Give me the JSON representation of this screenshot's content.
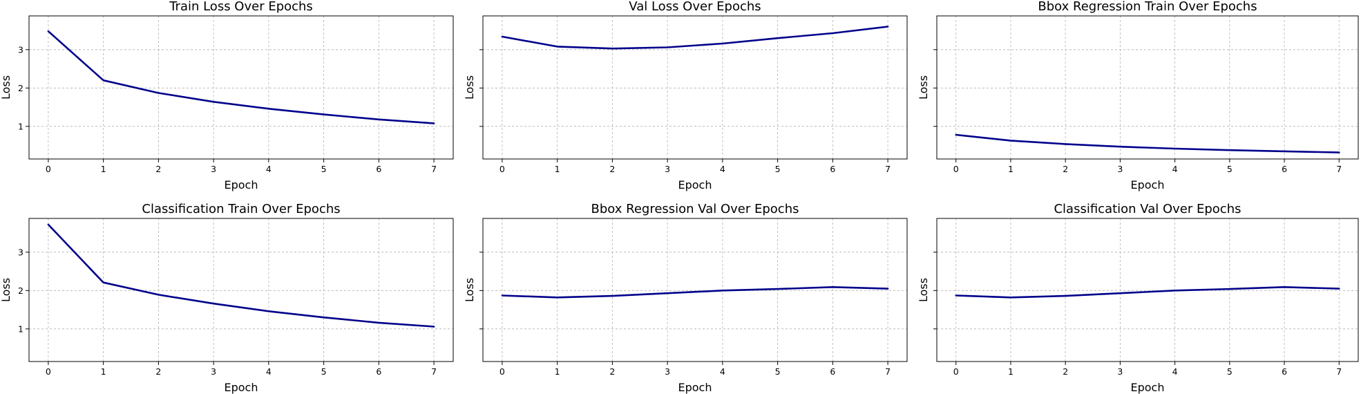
{
  "colors": {
    "line": "#00008b",
    "grid": "#b0b0b0"
  },
  "shared_y": {
    "ylim": [
      0.15,
      3.88
    ],
    "yticks": [
      1,
      2,
      3
    ]
  },
  "chart_data": [
    {
      "type": "line",
      "title": "Train Loss Over Epochs",
      "xlabel": "Epoch",
      "ylabel": "Loss",
      "x": [
        0,
        1,
        2,
        3,
        4,
        5,
        6,
        7
      ],
      "series": [
        {
          "values": [
            3.48,
            2.2,
            1.87,
            1.64,
            1.46,
            1.31,
            1.18,
            1.08
          ]
        }
      ],
      "xlim": [
        -0.35,
        7.35
      ],
      "ylim": [
        0.15,
        3.88
      ],
      "xticks": [
        0,
        1,
        2,
        3,
        4,
        5,
        6,
        7
      ],
      "yticks": [
        1,
        2,
        3
      ],
      "show_ytick_labels": true,
      "grid": true
    },
    {
      "type": "line",
      "title": "Val Loss Over Epochs",
      "xlabel": "Epoch",
      "ylabel": "Loss",
      "x": [
        0,
        1,
        2,
        3,
        4,
        5,
        6,
        7
      ],
      "series": [
        {
          "values": [
            3.34,
            3.08,
            3.03,
            3.06,
            3.16,
            3.3,
            3.43,
            3.6
          ]
        }
      ],
      "xlim": [
        -0.35,
        7.35
      ],
      "ylim": [
        0.15,
        3.88
      ],
      "xticks": [
        0,
        1,
        2,
        3,
        4,
        5,
        6,
        7
      ],
      "yticks": [
        1,
        2,
        3
      ],
      "show_ytick_labels": false,
      "grid": true
    },
    {
      "type": "line",
      "title": "Bbox Regression Train Over Epochs",
      "xlabel": "Epoch",
      "ylabel": "Loss",
      "x": [
        0,
        1,
        2,
        3,
        4,
        5,
        6,
        7
      ],
      "series": [
        {
          "values": [
            0.78,
            0.63,
            0.54,
            0.47,
            0.42,
            0.38,
            0.35,
            0.32
          ]
        }
      ],
      "xlim": [
        -0.35,
        7.35
      ],
      "ylim": [
        0.15,
        3.88
      ],
      "xticks": [
        0,
        1,
        2,
        3,
        4,
        5,
        6,
        7
      ],
      "yticks": [
        1,
        2,
        3
      ],
      "show_ytick_labels": false,
      "grid": true
    },
    {
      "type": "line",
      "title": "Classification Train Over Epochs",
      "xlabel": "Epoch",
      "ylabel": "Loss",
      "x": [
        0,
        1,
        2,
        3,
        4,
        5,
        6,
        7
      ],
      "series": [
        {
          "values": [
            3.72,
            2.21,
            1.89,
            1.66,
            1.46,
            1.3,
            1.16,
            1.06
          ]
        }
      ],
      "xlim": [
        -0.35,
        7.35
      ],
      "ylim": [
        0.15,
        3.88
      ],
      "xticks": [
        0,
        1,
        2,
        3,
        4,
        5,
        6,
        7
      ],
      "yticks": [
        1,
        2,
        3
      ],
      "show_ytick_labels": true,
      "grid": true
    },
    {
      "type": "line",
      "title": "Bbox Regression Val Over Epochs",
      "xlabel": "Epoch",
      "ylabel": "Loss",
      "x": [
        0,
        1,
        2,
        3,
        4,
        5,
        6,
        7
      ],
      "series": [
        {
          "values": [
            1.87,
            1.82,
            1.86,
            1.93,
            2.0,
            2.04,
            2.09,
            2.05
          ]
        }
      ],
      "xlim": [
        -0.35,
        7.35
      ],
      "ylim": [
        0.15,
        3.88
      ],
      "xticks": [
        0,
        1,
        2,
        3,
        4,
        5,
        6,
        7
      ],
      "yticks": [
        1,
        2,
        3
      ],
      "show_ytick_labels": false,
      "grid": true
    },
    {
      "type": "line",
      "title": "Classification Val Over Epochs",
      "xlabel": "Epoch",
      "ylabel": "Loss",
      "x": [
        0,
        1,
        2,
        3,
        4,
        5,
        6,
        7
      ],
      "series": [
        {
          "values": [
            1.87,
            1.82,
            1.86,
            1.93,
            2.0,
            2.04,
            2.09,
            2.05
          ]
        }
      ],
      "xlim": [
        -0.35,
        7.35
      ],
      "ylim": [
        0.15,
        3.88
      ],
      "xticks": [
        0,
        1,
        2,
        3,
        4,
        5,
        6,
        7
      ],
      "yticks": [
        1,
        2,
        3
      ],
      "show_ytick_labels": false,
      "grid": true
    }
  ]
}
